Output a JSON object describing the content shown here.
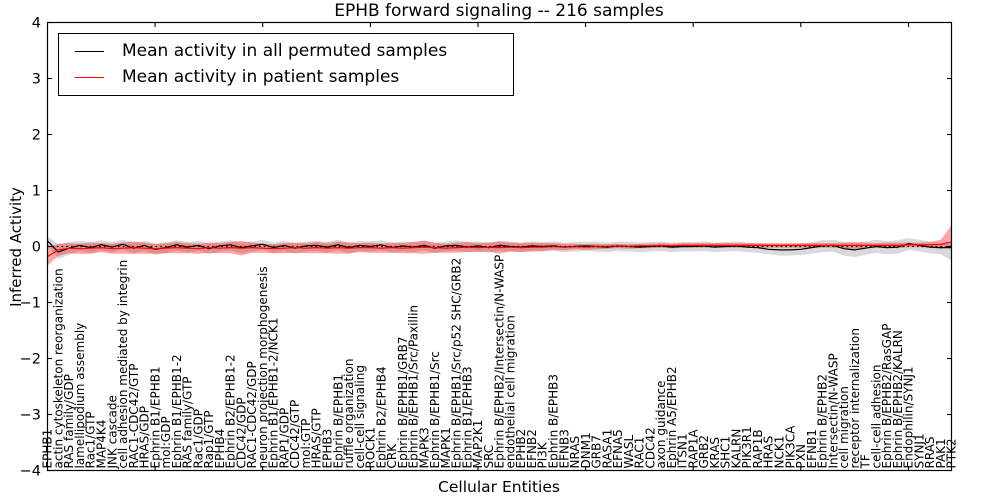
{
  "chart_data": {
    "type": "line",
    "title": "EPHB forward signaling -- 216 samples",
    "xlabel": "Cellular Entities",
    "ylabel": "Inferred Activity",
    "ylim": [
      -4,
      4
    ],
    "yticks": [
      -4,
      -3,
      -2,
      -1,
      0,
      1,
      2,
      3,
      4
    ],
    "ytick_labels": [
      "−4",
      "−3",
      "−2",
      "−1",
      "0",
      "1",
      "2",
      "3",
      "4"
    ],
    "grid": false,
    "legend_position": "upper left",
    "zero_line": {
      "style": "dotted",
      "color": "#000000",
      "y": 0
    },
    "categories": [
      "EPHB1",
      "actin cytoskeleton reorganization",
      "RAS family/GDP",
      "lamellipodium assembly",
      "Rac1/GTP",
      "MAP4K4",
      "JNK cascade",
      "cell adhesion mediated by integrin",
      "RAC1-CDC42/GTP",
      "HRAS/GDP",
      "Ephrin B1/EPHB1",
      "mol:GDP",
      "Ephrin B1/EPHB1-2",
      "RAS family/GTP",
      "Rac1/GDP",
      "Rap1/GTP",
      "EPHB4",
      "Ephrin B2/EPHB1-2",
      "CDC42/GDP",
      "RAC1-CDC42/GDP",
      "neuron projection morphogenesis",
      "Ephrin B1/EPHB1-2/NCK1",
      "RAP1/GDP",
      "CDC42/GTP",
      "mol:GTP",
      "HRAS/GTP",
      "EPHB3",
      "Ephrin B/EPHB1",
      "ruffle organization",
      "cell-cell signaling",
      "ROCK1",
      "Ephrin B2/EPHB4",
      "CRK",
      "Ephrin B/EPHB1/GRB7",
      "Ephrin B/EPHB1/Src/Paxillin",
      "MAPK3",
      "Ephrin B/EPHB1/Src",
      "MAPK1",
      "Ephrin B/EPHB1/Src/p52 SHC/GRB2",
      "Ephrin B1/EPHB3",
      "MAP2K1",
      "SRC",
      "Ephrin B/EPHB2/Intersectin/N-WASP",
      "endothelial cell migration",
      "EPHB2",
      "EFNB2",
      "PI3K",
      "Ephrin B/EPHB3",
      "EFNB3",
      "NRAS",
      "DNM1",
      "GRB7",
      "RASA1",
      "EFNA5",
      "WASL",
      "RAC1",
      "CDC42",
      "axon guidance",
      "Ephrin A5/EPHB2",
      "ITSN1",
      "RAP1A",
      "GRB2",
      "KRAS",
      "SHC1",
      "KALRN",
      "PIK3R1",
      "RAP1B",
      "HRAS",
      "NCK1",
      "PIK3CA",
      "PXN",
      "EFNB1",
      "Ephrin B/EPHB2",
      "Intersectin/N-WASP",
      "cell migration",
      "receptor internalization",
      "TF",
      "cell-cell adhesion",
      "Ephrin B/EPHB2/RasGAP",
      "Ephrin B/EPHB2/KALRN",
      "Endophilin/SYNJ1",
      "SYNJ1",
      "RRAS",
      "PAK1",
      "PTK2"
    ],
    "series": [
      {
        "name": "Mean activity in all permuted samples",
        "color": "#000000",
        "band_color": "rgba(128,128,128,0.30)",
        "values": [
          0.1,
          -0.1,
          -0.03,
          0.02,
          -0.02,
          0.03,
          -0.01,
          0.04,
          -0.03,
          0.02,
          -0.05,
          -0.02,
          0.03,
          -0.01,
          0.02,
          -0.04,
          0.01,
          0.03,
          -0.02,
          0.01,
          0.04,
          -0.02,
          0.02,
          -0.03,
          0.01,
          0.02,
          -0.01,
          0.03,
          -0.02,
          0.02,
          0.0,
          0.03,
          -0.02,
          0.01,
          -0.01,
          0.02,
          -0.03,
          0.01,
          0.02,
          -0.01,
          0.01,
          -0.02,
          0.02,
          0.0,
          -0.01,
          0.01,
          0.0,
          0.01,
          -0.01,
          0.0,
          0.01,
          0.0,
          -0.01,
          0.01,
          0.0,
          -0.01,
          0.0,
          0.01,
          -0.01,
          0.0,
          0.0,
          0.01,
          -0.01,
          0.0,
          0.01,
          -0.01,
          -0.02,
          -0.05,
          -0.06,
          -0.06,
          -0.05,
          -0.02,
          0.01,
          0.02,
          -0.04,
          -0.06,
          -0.03,
          0.0,
          -0.02,
          -0.01,
          0.05,
          0.02,
          -0.01,
          -0.02,
          -0.02
        ],
        "band_upper": [
          0.18,
          0.04,
          0.08,
          0.1,
          0.08,
          0.11,
          0.08,
          0.12,
          0.07,
          0.1,
          0.05,
          0.07,
          0.11,
          0.08,
          0.1,
          0.06,
          0.09,
          0.11,
          0.07,
          0.09,
          0.12,
          0.07,
          0.1,
          0.06,
          0.09,
          0.1,
          0.08,
          0.12,
          0.07,
          0.1,
          0.09,
          0.11,
          0.07,
          0.09,
          0.08,
          0.11,
          0.06,
          0.09,
          0.11,
          0.08,
          0.09,
          0.07,
          0.1,
          0.09,
          0.07,
          0.09,
          0.08,
          0.09,
          0.07,
          0.08,
          0.09,
          0.08,
          0.07,
          0.09,
          0.08,
          0.07,
          0.08,
          0.09,
          0.07,
          0.08,
          0.08,
          0.09,
          0.07,
          0.08,
          0.09,
          0.07,
          0.06,
          0.04,
          0.04,
          0.04,
          0.05,
          0.08,
          0.11,
          0.12,
          0.08,
          0.06,
          0.09,
          0.12,
          0.1,
          0.11,
          0.15,
          0.12,
          0.09,
          0.06,
          0.05
        ],
        "band_lower": [
          0.02,
          -0.22,
          -0.15,
          -0.08,
          -0.12,
          -0.07,
          -0.11,
          -0.06,
          -0.13,
          -0.08,
          -0.15,
          -0.12,
          -0.07,
          -0.11,
          -0.08,
          -0.14,
          -0.09,
          -0.07,
          -0.12,
          -0.09,
          -0.06,
          -0.12,
          -0.08,
          -0.13,
          -0.09,
          -0.08,
          -0.11,
          -0.07,
          -0.12,
          -0.08,
          -0.09,
          -0.07,
          -0.11,
          -0.09,
          -0.1,
          -0.07,
          -0.12,
          -0.09,
          -0.07,
          -0.1,
          -0.09,
          -0.11,
          -0.08,
          -0.09,
          -0.1,
          -0.08,
          -0.09,
          -0.08,
          -0.1,
          -0.09,
          -0.08,
          -0.09,
          -0.1,
          -0.08,
          -0.09,
          -0.1,
          -0.09,
          -0.08,
          -0.1,
          -0.09,
          -0.09,
          -0.08,
          -0.1,
          -0.09,
          -0.08,
          -0.1,
          -0.11,
          -0.14,
          -0.16,
          -0.16,
          -0.15,
          -0.13,
          -0.1,
          -0.09,
          -0.16,
          -0.19,
          -0.15,
          -0.11,
          -0.14,
          -0.13,
          -0.06,
          -0.09,
          -0.12,
          -0.14,
          -0.25
        ]
      },
      {
        "name": "Mean activity in patient samples",
        "color": "#ff0000",
        "band_color": "rgba(255,0,0,0.35)",
        "values": [
          -0.18,
          -0.06,
          -0.03,
          -0.04,
          -0.03,
          -0.02,
          -0.04,
          -0.03,
          -0.02,
          -0.03,
          -0.04,
          -0.03,
          -0.02,
          -0.03,
          -0.04,
          -0.02,
          -0.03,
          -0.02,
          -0.03,
          -0.02,
          -0.03,
          -0.04,
          -0.03,
          -0.02,
          -0.03,
          -0.02,
          -0.03,
          -0.02,
          -0.03,
          -0.02,
          -0.02,
          -0.03,
          -0.02,
          -0.03,
          -0.02,
          -0.01,
          -0.02,
          -0.03,
          -0.02,
          -0.01,
          -0.02,
          -0.01,
          -0.02,
          -0.01,
          -0.02,
          -0.01,
          -0.01,
          0.0,
          -0.01,
          0.0,
          -0.01,
          0.0,
          0.0,
          0.01,
          0.0,
          0.01,
          0.01,
          0.02,
          0.01,
          0.02,
          0.02,
          0.02,
          0.02,
          0.02,
          0.02,
          0.02,
          0.02,
          0.02,
          0.02,
          0.02,
          0.02,
          0.02,
          0.02,
          0.02,
          0.02,
          0.02,
          0.02,
          0.02,
          0.02,
          0.02,
          0.03,
          0.03,
          0.03,
          0.04,
          0.08
        ],
        "band_upper": [
          -0.02,
          0.05,
          0.06,
          0.05,
          0.07,
          0.06,
          0.05,
          0.07,
          0.09,
          0.07,
          0.05,
          0.06,
          0.08,
          0.06,
          0.05,
          0.07,
          0.06,
          0.08,
          0.1,
          0.07,
          0.05,
          0.04,
          0.06,
          0.07,
          0.06,
          0.08,
          0.06,
          0.09,
          0.07,
          0.06,
          0.07,
          0.05,
          0.07,
          0.06,
          0.08,
          0.1,
          0.07,
          0.05,
          0.07,
          0.08,
          0.06,
          0.07,
          0.09,
          0.07,
          0.06,
          0.07,
          0.06,
          0.06,
          0.05,
          0.05,
          0.04,
          0.05,
          0.04,
          0.05,
          0.04,
          0.05,
          0.05,
          0.06,
          0.05,
          0.06,
          0.06,
          0.06,
          0.06,
          0.06,
          0.06,
          0.06,
          0.06,
          0.06,
          0.06,
          0.06,
          0.06,
          0.06,
          0.06,
          0.06,
          0.07,
          0.08,
          0.07,
          0.06,
          0.07,
          0.07,
          0.07,
          0.07,
          0.08,
          0.12,
          0.38
        ],
        "band_lower": [
          -0.34,
          -0.17,
          -0.12,
          -0.13,
          -0.13,
          -0.1,
          -0.13,
          -0.13,
          -0.13,
          -0.13,
          -0.13,
          -0.12,
          -0.12,
          -0.12,
          -0.13,
          -0.11,
          -0.12,
          -0.12,
          -0.16,
          -0.11,
          -0.11,
          -0.12,
          -0.12,
          -0.11,
          -0.12,
          -0.12,
          -0.12,
          -0.13,
          -0.13,
          -0.1,
          -0.11,
          -0.11,
          -0.11,
          -0.12,
          -0.12,
          -0.13,
          -0.11,
          -0.11,
          -0.11,
          -0.1,
          -0.1,
          -0.09,
          -0.13,
          -0.09,
          -0.1,
          -0.09,
          -0.08,
          -0.06,
          -0.07,
          -0.05,
          -0.06,
          -0.05,
          -0.04,
          -0.03,
          -0.04,
          -0.03,
          -0.03,
          -0.02,
          -0.03,
          -0.02,
          -0.02,
          -0.02,
          -0.02,
          -0.02,
          -0.02,
          -0.02,
          -0.02,
          -0.02,
          -0.02,
          -0.02,
          -0.02,
          -0.02,
          -0.02,
          -0.02,
          -0.03,
          -0.04,
          -0.03,
          -0.02,
          -0.03,
          -0.03,
          -0.01,
          -0.01,
          -0.02,
          -0.04,
          -0.02
        ]
      }
    ]
  },
  "legend": {
    "items": [
      {
        "label": "Mean activity in all permuted samples",
        "color": "#000000"
      },
      {
        "label": "Mean activity in patient samples",
        "color": "#ff0000"
      }
    ]
  }
}
